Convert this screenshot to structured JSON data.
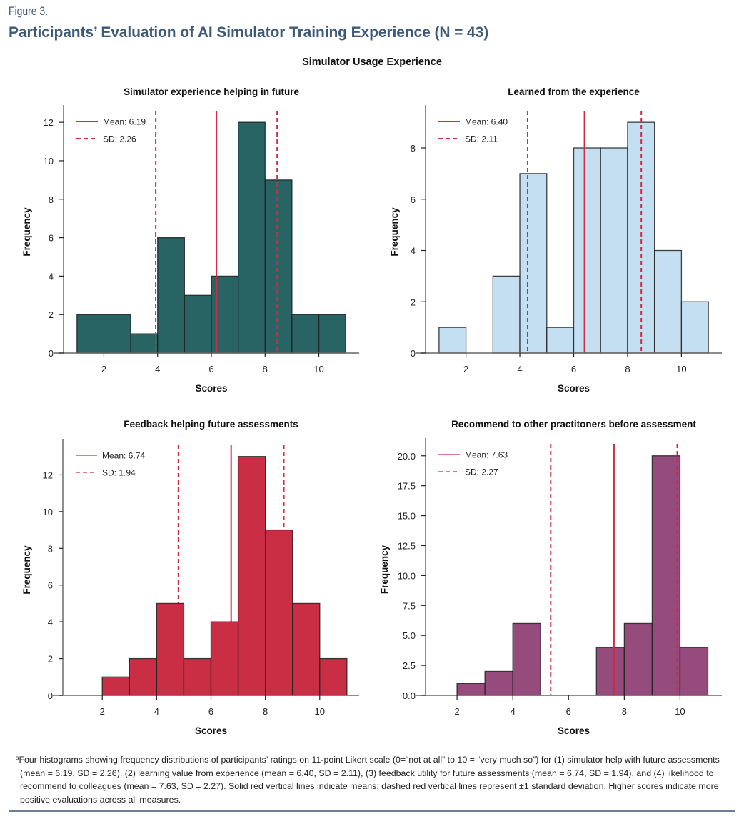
{
  "figure": {
    "label": "Figure 3.",
    "title": "Participants’ Evaluation of AI Simulator Training Experience (N = 43)",
    "suptitle": "Simulator Usage Experience"
  },
  "colors": {
    "title": "#3e5a78",
    "line": "#cf2b41",
    "teal": "#286464",
    "light_blue": "#c4dff2",
    "red": "#c92e44",
    "purple": "#954c7c"
  },
  "chart_data": [
    {
      "type": "bar",
      "subtype": "histogram",
      "title": "Simulator experience helping in future",
      "xlabel": "Scores",
      "ylabel": "Frequency",
      "bins": [
        [
          1,
          3
        ],
        [
          3,
          4
        ],
        [
          4,
          5
        ],
        [
          5,
          6
        ],
        [
          6,
          7
        ],
        [
          7,
          8
        ],
        [
          8,
          9
        ],
        [
          9,
          10
        ],
        [
          10,
          11
        ]
      ],
      "values": [
        2,
        1,
        6,
        3,
        4,
        12,
        9,
        2,
        2
      ],
      "fill": "#286464",
      "xlim": [
        0.5,
        11.5
      ],
      "ylim": [
        0,
        12.6
      ],
      "xticks": [
        2,
        4,
        6,
        8,
        10
      ],
      "xtick_labels": [
        "2",
        "4",
        "6",
        "8",
        "10"
      ],
      "yticks": [
        0,
        2,
        4,
        6,
        8,
        10,
        12
      ],
      "ytick_labels": [
        "0",
        "2",
        "4",
        "6",
        "8",
        "10",
        "12"
      ],
      "mean": 6.19,
      "sd": 2.26,
      "legend": {
        "placement": "top-left",
        "mean_label": "Mean: 6.19",
        "sd_label": "SD: 2.26"
      },
      "lines_on_top": true
    },
    {
      "type": "bar",
      "subtype": "histogram",
      "title": "Learned from the experience",
      "xlabel": "Scores",
      "ylabel": "Frequency",
      "bins": [
        [
          1,
          2
        ],
        [
          2,
          3
        ],
        [
          3,
          4
        ],
        [
          4,
          5
        ],
        [
          5,
          6
        ],
        [
          6,
          7
        ],
        [
          7,
          8
        ],
        [
          8,
          9
        ],
        [
          9,
          10
        ],
        [
          10,
          11
        ]
      ],
      "values": [
        1,
        0,
        3,
        7,
        1,
        8,
        8,
        9,
        4,
        2
      ],
      "fill": "#c4dff2",
      "xlim": [
        0.5,
        11.5
      ],
      "ylim": [
        0,
        9.45
      ],
      "xticks": [
        2,
        4,
        6,
        8,
        10
      ],
      "xtick_labels": [
        "2",
        "4",
        "6",
        "8",
        "10"
      ],
      "yticks": [
        0,
        2,
        4,
        6,
        8
      ],
      "ytick_labels": [
        "0",
        "2",
        "4",
        "6",
        "8"
      ],
      "mean": 6.4,
      "sd": 2.11,
      "legend": {
        "placement": "top-left",
        "mean_label": "Mean: 6.40",
        "sd_label": "SD: 2.11"
      },
      "lines_on_top": true
    },
    {
      "type": "bar",
      "subtype": "histogram",
      "title": "Feedback helping future assessments",
      "xlabel": "Scores",
      "ylabel": "Frequency",
      "bins": [
        [
          2,
          3
        ],
        [
          3,
          4
        ],
        [
          4,
          5
        ],
        [
          5,
          6
        ],
        [
          6,
          7
        ],
        [
          7,
          8
        ],
        [
          8,
          9
        ],
        [
          9,
          10
        ],
        [
          10,
          11
        ]
      ],
      "values": [
        1,
        2,
        5,
        2,
        4,
        13,
        9,
        5,
        2
      ],
      "fill": "#c92e44",
      "xlim": [
        0.55,
        11.45
      ],
      "ylim": [
        0,
        13.65
      ],
      "xticks": [
        2,
        4,
        6,
        8,
        10
      ],
      "xtick_labels": [
        "2",
        "4",
        "6",
        "8",
        "10"
      ],
      "yticks": [
        0,
        2,
        4,
        6,
        8,
        10,
        12
      ],
      "ytick_labels": [
        "0",
        "2",
        "4",
        "6",
        "8",
        "10",
        "12"
      ],
      "mean": 6.74,
      "sd": 1.94,
      "legend": {
        "placement": "top-left",
        "mean_label": "Mean: 6.74",
        "sd_label": "SD: 1.94"
      },
      "lines_on_top": false
    },
    {
      "type": "bar",
      "subtype": "histogram",
      "title": "Recommend to other practitoners before assessment",
      "xlabel": "Scores",
      "ylabel": "Frequency",
      "bins": [
        [
          2,
          3
        ],
        [
          3,
          4
        ],
        [
          4,
          5
        ],
        [
          5,
          6
        ],
        [
          6,
          7
        ],
        [
          7,
          8
        ],
        [
          8,
          9
        ],
        [
          9,
          10
        ],
        [
          10,
          11
        ]
      ],
      "values": [
        1,
        2,
        6,
        0,
        0,
        4,
        6,
        20,
        4
      ],
      "fill": "#954c7c",
      "xlim": [
        0.87,
        11.5
      ],
      "ylim": [
        0,
        21
      ],
      "xticks": [
        2,
        4,
        6,
        8,
        10
      ],
      "xtick_labels": [
        "2",
        "4",
        "6",
        "8",
        "10"
      ],
      "yticks": [
        0,
        2.5,
        5,
        7.5,
        10,
        12.5,
        15,
        17.5,
        20
      ],
      "ytick_labels": [
        "0.0",
        "2.5",
        "5.0",
        "7.5",
        "10.0",
        "12.5",
        "15.0",
        "17.5",
        "20.0"
      ],
      "mean": 7.63,
      "sd": 2.27,
      "legend": {
        "placement": "top-left",
        "mean_label": "Mean: 7.63",
        "sd_label": "SD: 2.27"
      },
      "lines_on_top": true
    }
  ],
  "footnote": {
    "marker": "a",
    "text": "Four histograms showing frequency distributions of participants’ ratings on 11-point Likert scale (0=“not at all” to 10 = “very much so”) for (1) simulator help with future assessments (mean = 6.19, SD = 2.26), (2) learning value from experience (mean = 6.40, SD = 2.11), (3) feedback utility for future assessments (mean = 6.74, SD = 1.94), and (4) likelihood to recommend to colleagues (mean = 7.63, SD = 2.27). Solid red vertical lines indicate means; dashed red vertical lines represent ±1 standard deviation. Higher scores indicate more positive evaluations across all measures."
  }
}
